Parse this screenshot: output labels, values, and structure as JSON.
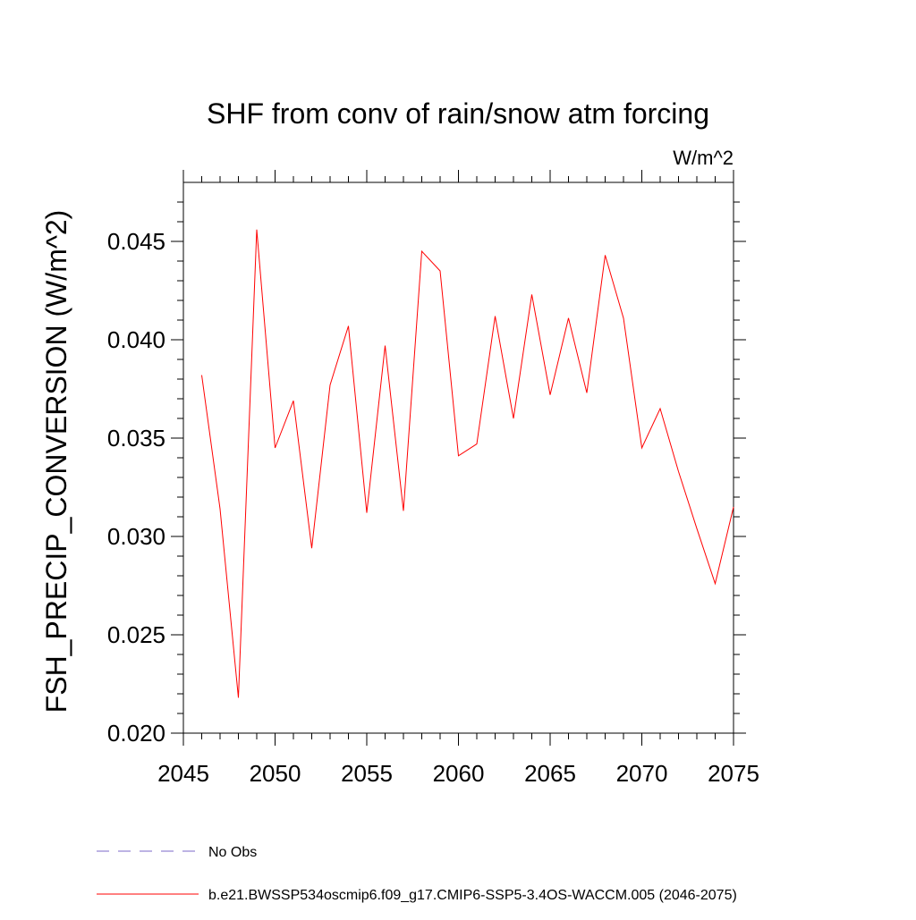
{
  "chart_data": {
    "type": "line",
    "title": "SHF from conv of rain/snow atm forcing",
    "units_label": "W/m^2",
    "xlabel": "",
    "ylabel": "FSH_PRECIP_CONVERSION  (W/m^2)",
    "xlim": [
      2045,
      2075
    ],
    "ylim": [
      0.02,
      0.048
    ],
    "x_ticks": [
      2045,
      2050,
      2055,
      2060,
      2065,
      2070,
      2075
    ],
    "x_tick_labels": [
      "2045",
      "2050",
      "2055",
      "2060",
      "2065",
      "2070",
      "2075"
    ],
    "y_ticks": [
      0.02,
      0.025,
      0.03,
      0.035,
      0.04,
      0.045
    ],
    "y_tick_labels": [
      "0.020",
      "0.025",
      "0.030",
      "0.035",
      "0.040",
      "0.045"
    ],
    "grid": false,
    "legend_position": "bottom-left",
    "series": [
      {
        "name": "No Obs",
        "color": "#7b68c8",
        "dash": "dashed",
        "x": [],
        "values": []
      },
      {
        "name": "b.e21.BWSSP534oscmip6.f09_g17.CMIP6-SSP5-3.4OS-WACCM.005 (2046-2075)",
        "color": "#ff0000",
        "dash": "solid",
        "x": [
          2046,
          2047,
          2048,
          2049,
          2050,
          2051,
          2052,
          2053,
          2054,
          2055,
          2056,
          2057,
          2058,
          2059,
          2060,
          2061,
          2062,
          2063,
          2064,
          2065,
          2066,
          2067,
          2068,
          2069,
          2070,
          2071,
          2072,
          2073,
          2074,
          2075
        ],
        "values": [
          0.0382,
          0.0314,
          0.0218,
          0.0456,
          0.0345,
          0.0369,
          0.0294,
          0.0377,
          0.0407,
          0.0312,
          0.0397,
          0.0313,
          0.0445,
          0.0435,
          0.0341,
          0.0347,
          0.0412,
          0.036,
          0.0423,
          0.0372,
          0.0411,
          0.0373,
          0.0443,
          0.0411,
          0.0345,
          0.0365,
          0.0333,
          0.0304,
          0.0276,
          0.0315
        ]
      }
    ]
  }
}
